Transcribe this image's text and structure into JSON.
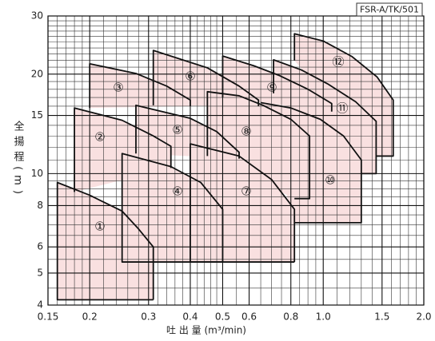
{
  "chart_data": {
    "type": "region",
    "code": "FSR-A/TK/501",
    "x_label": "吐 出 量 (m³/min)",
    "y_label": "全揚程(m)",
    "log_x": true,
    "log_y": true,
    "grid": true,
    "fill": "#f9e0e0",
    "line_color": "#111111",
    "xlim": [
      0.15,
      2.0
    ],
    "ylim": [
      4,
      30
    ],
    "xticks": [
      0.15,
      0.2,
      0.3,
      0.4,
      0.5,
      0.6,
      0.8,
      {
        "value": 1.0,
        "label": "1.0"
      },
      1.5,
      {
        "value": 2.0,
        "label": "2.0"
      }
    ],
    "yticks": [
      4,
      5,
      6,
      8,
      10,
      15,
      20,
      30
    ],
    "xgrid": [
      0.16,
      0.17,
      0.18,
      0.19,
      0.22,
      0.24,
      0.26,
      0.28,
      0.32,
      0.34,
      0.36,
      0.38,
      0.42,
      0.44,
      0.46,
      0.48,
      0.55,
      0.65,
      0.7,
      0.75,
      0.85,
      0.9,
      0.95,
      1.1,
      1.2,
      1.3,
      1.4,
      1.6,
      1.7,
      1.8,
      1.9
    ],
    "ygrid": [
      4.5,
      5.5,
      6.5,
      7,
      7.5,
      8.5,
      9,
      9.5,
      11,
      12,
      13,
      14,
      16,
      17,
      18,
      19,
      21,
      22,
      23,
      24,
      25,
      26,
      27,
      28,
      29
    ],
    "series": [
      {
        "name": "①",
        "x": [
          0.31,
          0.16,
          0.16,
          0.2,
          0.25,
          0.28,
          0.31,
          0.31
        ],
        "y": [
          4.15,
          4.15,
          9.4,
          8.6,
          7.7,
          6.8,
          6.0,
          4.15
        ]
      },
      {
        "name": "②",
        "x": [
          0.18,
          0.18,
          0.25,
          0.31,
          0.35,
          0.35
        ],
        "y": [
          8.8,
          15.8,
          14.5,
          13.0,
          12.1,
          10.4
        ]
      },
      {
        "name": "③",
        "x": [
          0.2,
          0.2,
          0.275,
          0.34,
          0.4,
          0.4
        ],
        "y": [
          15.8,
          21.5,
          20.1,
          18.4,
          16.7,
          16.0
        ]
      },
      {
        "name": "④",
        "x": [
          0.5,
          0.25,
          0.25,
          0.35,
          0.43,
          0.5,
          0.5
        ],
        "y": [
          5.4,
          5.4,
          11.5,
          10.5,
          9.4,
          7.8,
          5.4
        ]
      },
      {
        "name": "⑤",
        "x": [
          0.275,
          0.275,
          0.4,
          0.48,
          0.56,
          0.56
        ],
        "y": [
          11.5,
          16.1,
          14.7,
          13.4,
          11.6,
          11.1
        ]
      },
      {
        "name": "⑥",
        "x": [
          0.31,
          0.31,
          0.45,
          0.56,
          0.64,
          0.64
        ],
        "y": [
          16.1,
          23.6,
          20.9,
          18.4,
          16.7,
          16.0
        ]
      },
      {
        "name": "⑦",
        "x": [
          0.82,
          0.4,
          0.4,
          0.56,
          0.7,
          0.82,
          0.82
        ],
        "y": [
          5.4,
          5.4,
          12.3,
          11.3,
          9.6,
          7.8,
          5.4
        ]
      },
      {
        "name": "⑧",
        "x": [
          0.45,
          0.45,
          0.56,
          0.66,
          0.8,
          0.91,
          0.91,
          0.82
        ],
        "y": [
          11.3,
          17.7,
          17.2,
          16.1,
          14.6,
          13.0,
          8.4,
          8.4
        ]
      },
      {
        "name": "⑨",
        "x": [
          0.5,
          0.5,
          0.62,
          0.74,
          0.9,
          1.06,
          1.06
        ],
        "y": [
          17.0,
          22.7,
          21.2,
          19.8,
          18.0,
          16.3,
          15.4
        ]
      },
      {
        "name": "⑩",
        "x": [
          0.65,
          0.8,
          0.98,
          1.15,
          1.3,
          1.3,
          0.82
        ],
        "y": [
          16.4,
          15.8,
          14.6,
          13.0,
          11.0,
          7.1,
          7.1
        ]
      },
      {
        "name": "⑪",
        "x": [
          0.71,
          0.71,
          0.86,
          1.03,
          1.25,
          1.44,
          1.44,
          1.3
        ],
        "y": [
          17.5,
          22.1,
          20.6,
          18.7,
          16.5,
          14.4,
          10.0,
          10.0
        ]
      },
      {
        "name": "⑫",
        "x": [
          0.82,
          0.82,
          1.0,
          1.22,
          1.45,
          1.62,
          1.62,
          1.44
        ],
        "y": [
          22.0,
          26.5,
          25.2,
          22.6,
          19.6,
          16.7,
          11.3,
          11.3
        ]
      }
    ]
  }
}
